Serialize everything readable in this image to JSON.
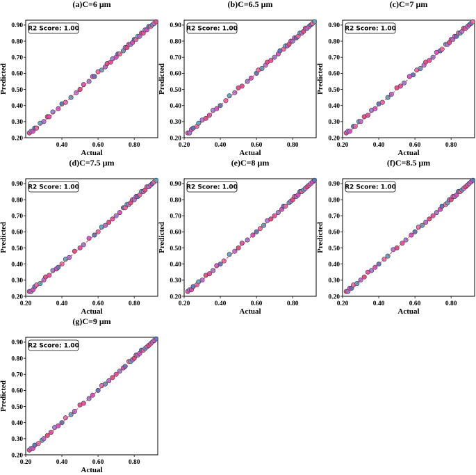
{
  "chart_data": [
    {
      "type": "scatter",
      "title": "(a)C=6  μm",
      "xlabel": "Actual",
      "ylabel": "Predicted",
      "annotation": "R2 Score: 1.00",
      "xlim": [
        0.2,
        0.93
      ],
      "ylim": [
        0.2,
        0.93
      ],
      "xticks": [
        "0.40",
        "0.60",
        "0.80"
      ],
      "yticks": [
        "0.20",
        "0.30",
        "0.40",
        "0.50",
        "0.60",
        "0.70",
        "0.80",
        "0.90"
      ],
      "points_x": [
        0.22,
        0.23,
        0.24,
        0.25,
        0.26,
        0.28,
        0.3,
        0.32,
        0.33,
        0.35,
        0.38,
        0.4,
        0.42,
        0.45,
        0.48,
        0.5,
        0.52,
        0.55,
        0.57,
        0.58,
        0.6,
        0.62,
        0.64,
        0.65,
        0.67,
        0.68,
        0.7,
        0.71,
        0.72,
        0.74,
        0.75,
        0.76,
        0.77,
        0.78,
        0.79,
        0.8,
        0.81,
        0.82,
        0.83,
        0.84,
        0.85,
        0.86,
        0.87,
        0.88,
        0.89,
        0.9,
        0.91,
        0.92
      ],
      "points_y": [
        0.23,
        0.24,
        0.24,
        0.26,
        0.26,
        0.29,
        0.3,
        0.33,
        0.33,
        0.36,
        0.38,
        0.41,
        0.42,
        0.45,
        0.48,
        0.5,
        0.53,
        0.55,
        0.58,
        0.58,
        0.61,
        0.62,
        0.64,
        0.66,
        0.67,
        0.69,
        0.7,
        0.72,
        0.72,
        0.74,
        0.76,
        0.76,
        0.78,
        0.78,
        0.79,
        0.81,
        0.81,
        0.83,
        0.83,
        0.85,
        0.85,
        0.87,
        0.87,
        0.89,
        0.89,
        0.9,
        0.91,
        0.92
      ]
    },
    {
      "type": "scatter",
      "title": "(b)C=6.5  μm",
      "xlabel": "Actual",
      "ylabel": "Predicted",
      "annotation": "R2 Score: 1.00",
      "xlim": [
        0.2,
        0.93
      ],
      "ylim": [
        0.2,
        0.93
      ],
      "xticks": [
        "0.20",
        "0.40",
        "0.60",
        "0.80"
      ],
      "yticks": [
        "0.20",
        "0.30",
        "0.40",
        "0.50",
        "0.60",
        "0.70",
        "0.80",
        "0.90"
      ],
      "points_x": [
        0.22,
        0.23,
        0.24,
        0.25,
        0.27,
        0.28,
        0.3,
        0.32,
        0.34,
        0.36,
        0.38,
        0.4,
        0.43,
        0.45,
        0.48,
        0.5,
        0.52,
        0.55,
        0.57,
        0.6,
        0.61,
        0.63,
        0.65,
        0.66,
        0.68,
        0.7,
        0.72,
        0.73,
        0.75,
        0.76,
        0.77,
        0.78,
        0.79,
        0.8,
        0.81,
        0.82,
        0.83,
        0.84,
        0.85,
        0.86,
        0.87,
        0.88,
        0.89,
        0.9,
        0.91,
        0.92
      ],
      "points_y": [
        0.23,
        0.23,
        0.25,
        0.26,
        0.27,
        0.29,
        0.31,
        0.32,
        0.34,
        0.37,
        0.38,
        0.4,
        0.43,
        0.46,
        0.48,
        0.51,
        0.52,
        0.55,
        0.57,
        0.6,
        0.62,
        0.63,
        0.65,
        0.67,
        0.68,
        0.7,
        0.72,
        0.74,
        0.75,
        0.77,
        0.77,
        0.78,
        0.8,
        0.8,
        0.82,
        0.82,
        0.83,
        0.85,
        0.85,
        0.86,
        0.88,
        0.88,
        0.89,
        0.9,
        0.91,
        0.92
      ]
    },
    {
      "type": "scatter",
      "title": "(c)C=7  μm",
      "xlabel": "Actual",
      "ylabel": "Predicted",
      "annotation": "R2 Score: 1.00",
      "xlim": [
        0.2,
        0.93
      ],
      "ylim": [
        0.2,
        0.93
      ],
      "xticks": [
        "0.20",
        "0.40",
        "0.60",
        "0.80"
      ],
      "yticks": [
        "0.20",
        "0.30",
        "0.40",
        "0.50",
        "0.60",
        "0.70",
        "0.80",
        "0.90"
      ],
      "points_x": [
        0.22,
        0.23,
        0.24,
        0.26,
        0.27,
        0.29,
        0.3,
        0.32,
        0.34,
        0.36,
        0.38,
        0.4,
        0.42,
        0.45,
        0.47,
        0.5,
        0.52,
        0.54,
        0.57,
        0.59,
        0.61,
        0.63,
        0.65,
        0.66,
        0.68,
        0.7,
        0.72,
        0.74,
        0.75,
        0.77,
        0.78,
        0.79,
        0.8,
        0.81,
        0.82,
        0.83,
        0.84,
        0.85,
        0.86,
        0.87,
        0.88,
        0.89,
        0.9,
        0.91,
        0.92
      ],
      "points_y": [
        0.23,
        0.24,
        0.24,
        0.27,
        0.27,
        0.3,
        0.3,
        0.33,
        0.34,
        0.37,
        0.38,
        0.41,
        0.42,
        0.45,
        0.47,
        0.51,
        0.52,
        0.54,
        0.58,
        0.59,
        0.62,
        0.63,
        0.65,
        0.67,
        0.68,
        0.7,
        0.73,
        0.74,
        0.75,
        0.78,
        0.78,
        0.79,
        0.81,
        0.81,
        0.83,
        0.83,
        0.85,
        0.85,
        0.86,
        0.88,
        0.88,
        0.89,
        0.9,
        0.91,
        0.92
      ]
    },
    {
      "type": "scatter",
      "title": "(d)C=7.5  μm",
      "xlabel": "Actual",
      "ylabel": "Predicted",
      "annotation": "R2 Score: 1.00",
      "xlim": [
        0.2,
        0.93
      ],
      "ylim": [
        0.2,
        0.93
      ],
      "xticks": [
        "0.20",
        "0.40",
        "0.60",
        "0.80"
      ],
      "yticks": [
        "0.20",
        "0.30",
        "0.40",
        "0.50",
        "0.60",
        "0.70",
        "0.80",
        "0.90"
      ],
      "points_x": [
        0.22,
        0.23,
        0.24,
        0.25,
        0.26,
        0.28,
        0.3,
        0.31,
        0.33,
        0.35,
        0.37,
        0.38,
        0.4,
        0.42,
        0.44,
        0.47,
        0.5,
        0.52,
        0.55,
        0.58,
        0.6,
        0.62,
        0.64,
        0.66,
        0.68,
        0.7,
        0.72,
        0.74,
        0.75,
        0.76,
        0.77,
        0.78,
        0.79,
        0.8,
        0.81,
        0.82,
        0.83,
        0.84,
        0.85,
        0.86,
        0.87,
        0.88,
        0.89,
        0.9,
        0.91,
        0.92
      ],
      "points_y": [
        0.23,
        0.23,
        0.24,
        0.26,
        0.27,
        0.28,
        0.3,
        0.32,
        0.33,
        0.36,
        0.37,
        0.38,
        0.4,
        0.43,
        0.44,
        0.48,
        0.5,
        0.52,
        0.56,
        0.58,
        0.6,
        0.63,
        0.64,
        0.66,
        0.68,
        0.7,
        0.72,
        0.75,
        0.75,
        0.77,
        0.77,
        0.78,
        0.8,
        0.8,
        0.82,
        0.82,
        0.83,
        0.85,
        0.85,
        0.86,
        0.88,
        0.88,
        0.89,
        0.9,
        0.91,
        0.92
      ]
    },
    {
      "type": "scatter",
      "title": "(e)C=8  μm",
      "xlabel": "Actual",
      "ylabel": "Predicted",
      "annotation": "R2 Score: 1.00",
      "xlim": [
        0.2,
        0.93
      ],
      "ylim": [
        0.2,
        0.93
      ],
      "xticks": [
        "0.20",
        "0.40",
        "0.60",
        "0.80"
      ],
      "yticks": [
        "0.20",
        "0.30",
        "0.40",
        "0.50",
        "0.60",
        "0.70",
        "0.80",
        "0.90"
      ],
      "points_x": [
        0.22,
        0.23,
        0.24,
        0.25,
        0.27,
        0.28,
        0.3,
        0.32,
        0.34,
        0.36,
        0.38,
        0.4,
        0.42,
        0.45,
        0.48,
        0.5,
        0.52,
        0.55,
        0.58,
        0.6,
        0.62,
        0.64,
        0.66,
        0.68,
        0.7,
        0.72,
        0.74,
        0.75,
        0.76,
        0.78,
        0.79,
        0.8,
        0.81,
        0.82,
        0.83,
        0.84,
        0.85,
        0.86,
        0.87,
        0.88,
        0.89,
        0.9,
        0.91,
        0.92
      ],
      "points_y": [
        0.23,
        0.24,
        0.24,
        0.26,
        0.27,
        0.29,
        0.3,
        0.33,
        0.34,
        0.36,
        0.39,
        0.4,
        0.42,
        0.46,
        0.48,
        0.5,
        0.53,
        0.55,
        0.58,
        0.6,
        0.62,
        0.64,
        0.67,
        0.68,
        0.7,
        0.72,
        0.74,
        0.76,
        0.76,
        0.78,
        0.79,
        0.8,
        0.82,
        0.82,
        0.83,
        0.85,
        0.85,
        0.86,
        0.87,
        0.88,
        0.89,
        0.9,
        0.91,
        0.92
      ]
    },
    {
      "type": "scatter",
      "title": "(f)C=8.5  μm",
      "xlabel": "Actual",
      "ylabel": "Predicted",
      "annotation": "R2 Score: 1.00",
      "xlim": [
        0.2,
        0.93
      ],
      "ylim": [
        0.2,
        0.93
      ],
      "xticks": [
        "0.20",
        "0.40",
        "0.60",
        "0.80"
      ],
      "yticks": [
        "0.20",
        "0.30",
        "0.40",
        "0.50",
        "0.60",
        "0.70",
        "0.80",
        "0.90"
      ],
      "points_x": [
        0.22,
        0.23,
        0.24,
        0.25,
        0.26,
        0.28,
        0.3,
        0.32,
        0.34,
        0.36,
        0.38,
        0.4,
        0.43,
        0.45,
        0.48,
        0.5,
        0.53,
        0.55,
        0.58,
        0.6,
        0.62,
        0.64,
        0.66,
        0.68,
        0.7,
        0.72,
        0.74,
        0.75,
        0.77,
        0.78,
        0.79,
        0.8,
        0.81,
        0.82,
        0.83,
        0.84,
        0.85,
        0.86,
        0.87,
        0.88,
        0.89,
        0.9,
        0.91,
        0.92
      ],
      "points_y": [
        0.23,
        0.23,
        0.25,
        0.25,
        0.27,
        0.28,
        0.3,
        0.32,
        0.35,
        0.36,
        0.38,
        0.4,
        0.43,
        0.45,
        0.49,
        0.5,
        0.53,
        0.55,
        0.58,
        0.6,
        0.63,
        0.64,
        0.66,
        0.68,
        0.7,
        0.72,
        0.74,
        0.76,
        0.77,
        0.78,
        0.8,
        0.8,
        0.82,
        0.82,
        0.83,
        0.85,
        0.85,
        0.86,
        0.87,
        0.88,
        0.89,
        0.9,
        0.91,
        0.92
      ]
    },
    {
      "type": "scatter",
      "title": "(g)C=9  μm",
      "xlabel": "Actual",
      "ylabel": "Predicted",
      "annotation": "R2 Score: 1.00",
      "xlim": [
        0.2,
        0.93
      ],
      "ylim": [
        0.2,
        0.93
      ],
      "xticks": [
        "0.20",
        "0.40",
        "0.60",
        "0.80"
      ],
      "yticks": [
        "0.20",
        "0.30",
        "0.40",
        "0.50",
        "0.60",
        "0.70",
        "0.80",
        "0.90"
      ],
      "points_x": [
        0.22,
        0.23,
        0.24,
        0.25,
        0.27,
        0.29,
        0.3,
        0.32,
        0.34,
        0.36,
        0.38,
        0.4,
        0.42,
        0.45,
        0.47,
        0.5,
        0.52,
        0.55,
        0.57,
        0.6,
        0.62,
        0.64,
        0.66,
        0.68,
        0.7,
        0.72,
        0.74,
        0.75,
        0.77,
        0.78,
        0.79,
        0.8,
        0.81,
        0.82,
        0.83,
        0.84,
        0.85,
        0.86,
        0.87,
        0.88,
        0.89,
        0.9,
        0.91,
        0.92
      ],
      "points_y": [
        0.23,
        0.24,
        0.24,
        0.26,
        0.27,
        0.29,
        0.3,
        0.32,
        0.34,
        0.37,
        0.38,
        0.4,
        0.43,
        0.45,
        0.47,
        0.51,
        0.52,
        0.55,
        0.57,
        0.6,
        0.63,
        0.64,
        0.66,
        0.68,
        0.7,
        0.72,
        0.74,
        0.75,
        0.78,
        0.78,
        0.79,
        0.8,
        0.82,
        0.82,
        0.83,
        0.85,
        0.85,
        0.86,
        0.87,
        0.88,
        0.89,
        0.9,
        0.91,
        0.92
      ]
    }
  ],
  "colors": {
    "points": [
      "#e64fb0",
      "#9a7fe0",
      "#d94fd6",
      "#4f78c8",
      "#f06bb0",
      "#5aa8c8",
      "#b76fe8",
      "#e04a8a"
    ],
    "point_edge": "#333333",
    "fit_line": "#e0485a",
    "frame": "#000000"
  }
}
